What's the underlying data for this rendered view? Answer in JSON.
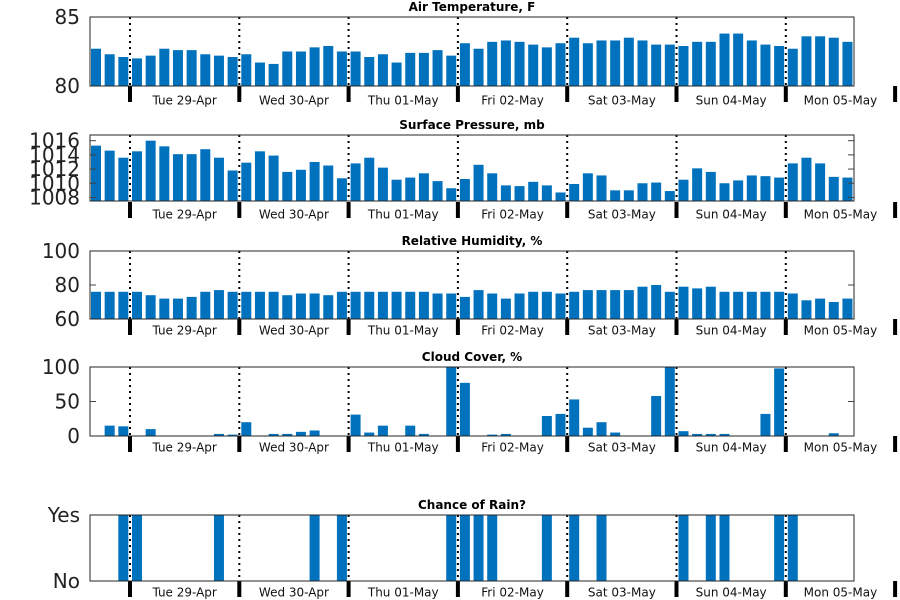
{
  "chart_data": [
    {
      "type": "bar",
      "title": "Air Temperature, F",
      "ylim": [
        80,
        85
      ],
      "yticks": [
        {
          "v": 80,
          "label": "80"
        },
        {
          "v": 85,
          "label": "85"
        }
      ],
      "day_labels": [
        "Tue 29-Apr",
        "Wed 30-Apr",
        "Thu 01-May",
        "Fri 02-May",
        "Sat 03-May",
        "Sun 04-May",
        "Mon 05-May"
      ],
      "values": [
        82.7,
        82.3,
        82.1,
        82.0,
        82.2,
        82.7,
        82.6,
        82.6,
        82.3,
        82.2,
        82.1,
        82.3,
        81.7,
        81.6,
        82.5,
        82.5,
        82.8,
        82.9,
        82.5,
        82.5,
        82.1,
        82.3,
        81.7,
        82.4,
        82.4,
        82.6,
        82.2,
        83.1,
        82.7,
        83.2,
        83.3,
        83.2,
        83.0,
        82.8,
        83.1,
        83.5,
        83.1,
        83.3,
        83.3,
        83.5,
        83.3,
        83.0,
        83.0,
        82.9,
        83.2,
        83.2,
        83.8,
        83.8,
        83.3,
        83.0,
        82.9,
        82.7,
        83.6,
        83.6,
        83.5,
        83.2
      ],
      "grid": false
    },
    {
      "type": "bar",
      "title": "Surface Pressure, mb",
      "ylim": [
        1007.5,
        1016.8
      ],
      "yticks": [
        {
          "v": 1008,
          "label": "1008"
        },
        {
          "v": 1010,
          "label": "1010"
        },
        {
          "v": 1012,
          "label": "1012"
        },
        {
          "v": 1014,
          "label": "1014"
        },
        {
          "v": 1016,
          "label": "1016"
        }
      ],
      "day_labels": [
        "Tue 29-Apr",
        "Wed 30-Apr",
        "Thu 01-May",
        "Fri 02-May",
        "Sat 03-May",
        "Sun 04-May",
        "Mon 05-May"
      ],
      "values": [
        1015.3,
        1014.6,
        1013.6,
        1014.5,
        1016.0,
        1015.2,
        1014.1,
        1014.1,
        1014.8,
        1013.6,
        1011.8,
        1012.9,
        1014.5,
        1013.9,
        1011.6,
        1011.9,
        1013.0,
        1012.5,
        1010.7,
        1012.8,
        1013.6,
        1012.2,
        1010.5,
        1010.8,
        1011.4,
        1010.3,
        1009.3,
        1010.6,
        1012.6,
        1011.4,
        1009.7,
        1009.6,
        1010.2,
        1009.7,
        1008.7,
        1009.9,
        1011.4,
        1011.1,
        1009.0,
        1009.0,
        1010.0,
        1010.1,
        1008.9,
        1010.5,
        1012.1,
        1011.6,
        1010.0,
        1010.4,
        1011.1,
        1011.0,
        1010.8,
        1012.8,
        1013.6,
        1012.8,
        1010.9,
        1010.8
      ],
      "grid": false
    },
    {
      "type": "bar",
      "title": "Relative Humidity, %",
      "ylim": [
        60,
        100
      ],
      "yticks": [
        {
          "v": 60,
          "label": "60"
        },
        {
          "v": 80,
          "label": "80"
        },
        {
          "v": 100,
          "label": "100"
        }
      ],
      "day_labels": [
        "Tue 29-Apr",
        "Wed 30-Apr",
        "Thu 01-May",
        "Fri 02-May",
        "Sat 03-May",
        "Sun 04-May",
        "Mon 05-May"
      ],
      "values": [
        76,
        76,
        76,
        76,
        74,
        72,
        72,
        73,
        76,
        77,
        76,
        76,
        76,
        76,
        74,
        75,
        75,
        74,
        76,
        76,
        76,
        76,
        76,
        76,
        76,
        75,
        75,
        73,
        77,
        75,
        72,
        75,
        76,
        76,
        75,
        76,
        77,
        77,
        77,
        77,
        79,
        80,
        76,
        79,
        78,
        79,
        76,
        76,
        76,
        76,
        76,
        75,
        71,
        72,
        70,
        72
      ],
      "grid": false
    },
    {
      "type": "bar",
      "title": "Cloud Cover, %",
      "ylim": [
        0,
        100
      ],
      "yticks": [
        {
          "v": 0,
          "label": "0"
        },
        {
          "v": 50,
          "label": "50"
        },
        {
          "v": 100,
          "label": "100"
        }
      ],
      "day_labels": [
        "Tue 29-Apr",
        "Wed 30-Apr",
        "Thu 01-May",
        "Fri 02-May",
        "Sat 03-May",
        "Sun 04-May",
        "Mon 05-May"
      ],
      "values": [
        0,
        15,
        14,
        0,
        10,
        0,
        0,
        0,
        0,
        3,
        2,
        20,
        0,
        3,
        3,
        6,
        8,
        0,
        0,
        31,
        5,
        15,
        0,
        15,
        3,
        0,
        100,
        77,
        0,
        2,
        3,
        0,
        0,
        29,
        32,
        53,
        12,
        20,
        5,
        0,
        0,
        58,
        100,
        7,
        3,
        3,
        3,
        0,
        0,
        32,
        98,
        0,
        0,
        0,
        4,
        0
      ],
      "grid": false
    },
    {
      "type": "bar",
      "title": "Chance of Rain?",
      "ylim": [
        0,
        1
      ],
      "yticks": [
        {
          "v": 0,
          "label": "No"
        },
        {
          "v": 1,
          "label": "Yes"
        }
      ],
      "day_labels": [
        "Tue 29-Apr",
        "Wed 30-Apr",
        "Thu 01-May",
        "Fri 02-May",
        "Sat 03-May",
        "Sun 04-May",
        "Mon 05-May"
      ],
      "values": [
        0,
        0,
        1,
        1,
        0,
        0,
        0,
        0,
        0,
        1,
        0,
        0,
        0,
        0,
        0,
        0,
        1,
        0,
        1,
        0,
        0,
        0,
        0,
        0,
        0,
        0,
        1,
        1,
        1,
        1,
        0,
        0,
        0,
        1,
        0,
        1,
        0,
        1,
        0,
        0,
        0,
        0,
        0,
        1,
        0,
        1,
        1,
        0,
        0,
        0,
        1,
        1,
        0,
        0,
        0,
        0
      ],
      "grid": false
    }
  ]
}
